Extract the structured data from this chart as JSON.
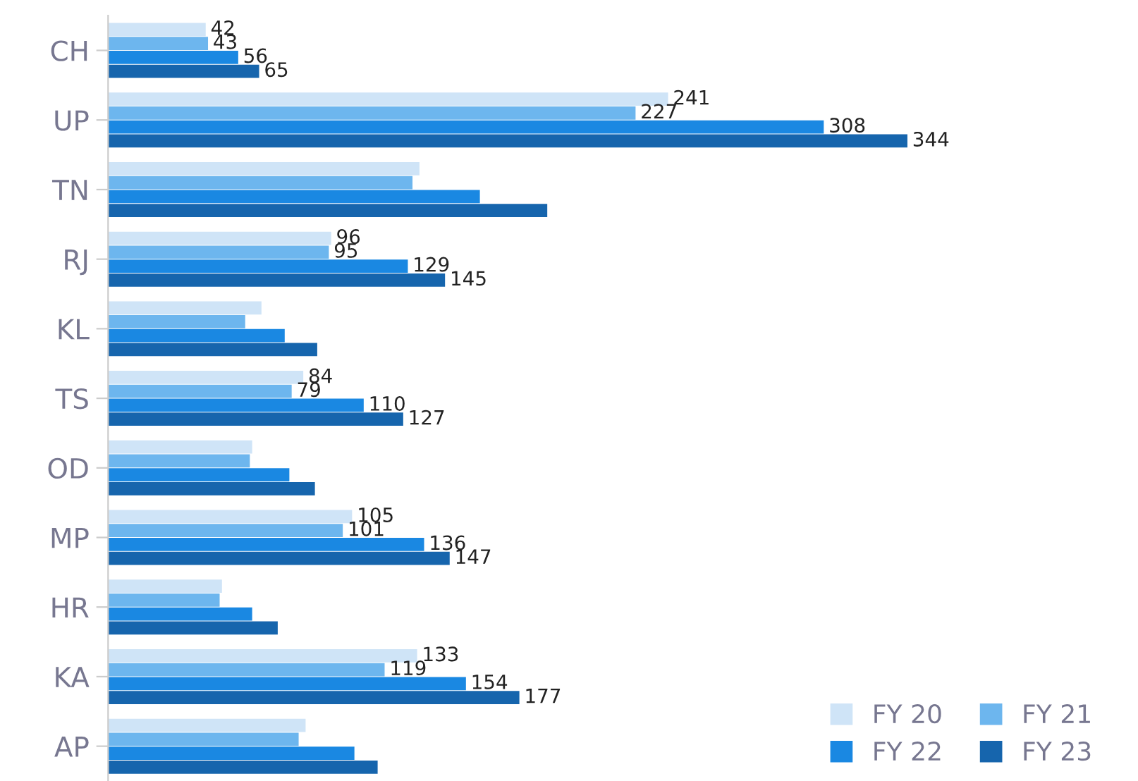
{
  "chart_data": {
    "type": "bar",
    "orientation": "horizontal",
    "categories": [
      "CH",
      "UP",
      "TN",
      "RJ",
      "KL",
      "TS",
      "OD",
      "MP",
      "HR",
      "KA",
      "AP"
    ],
    "series": [
      {
        "name": "FY 20",
        "color": "#cfe4f7",
        "values": [
          42,
          241,
          134,
          96,
          66,
          84,
          62,
          105,
          49,
          133,
          85
        ],
        "value_labels": [
          "42",
          "241",
          null,
          "96",
          null,
          "84",
          null,
          "105",
          null,
          "133",
          null
        ]
      },
      {
        "name": "FY 21",
        "color": "#6db6ee",
        "values": [
          43,
          227,
          131,
          95,
          59,
          79,
          61,
          101,
          48,
          119,
          82
        ],
        "value_labels": [
          "43",
          "227",
          null,
          "95",
          null,
          "79",
          null,
          "101",
          null,
          "119",
          null
        ]
      },
      {
        "name": "FY 22",
        "color": "#1a88e2",
        "values": [
          56,
          308,
          160,
          129,
          76,
          110,
          78,
          136,
          62,
          154,
          106
        ],
        "value_labels": [
          "56",
          "308",
          null,
          "129",
          null,
          "110",
          null,
          "136",
          null,
          "154",
          null
        ]
      },
      {
        "name": "FY 23",
        "color": "#1665ad",
        "values": [
          65,
          344,
          189,
          145,
          90,
          127,
          89,
          147,
          73,
          177,
          116
        ],
        "value_labels": [
          "65",
          "344",
          null,
          "145",
          null,
          "127",
          null,
          "147",
          null,
          "177",
          null
        ]
      }
    ],
    "legend": "bottom right",
    "grid": false
  }
}
